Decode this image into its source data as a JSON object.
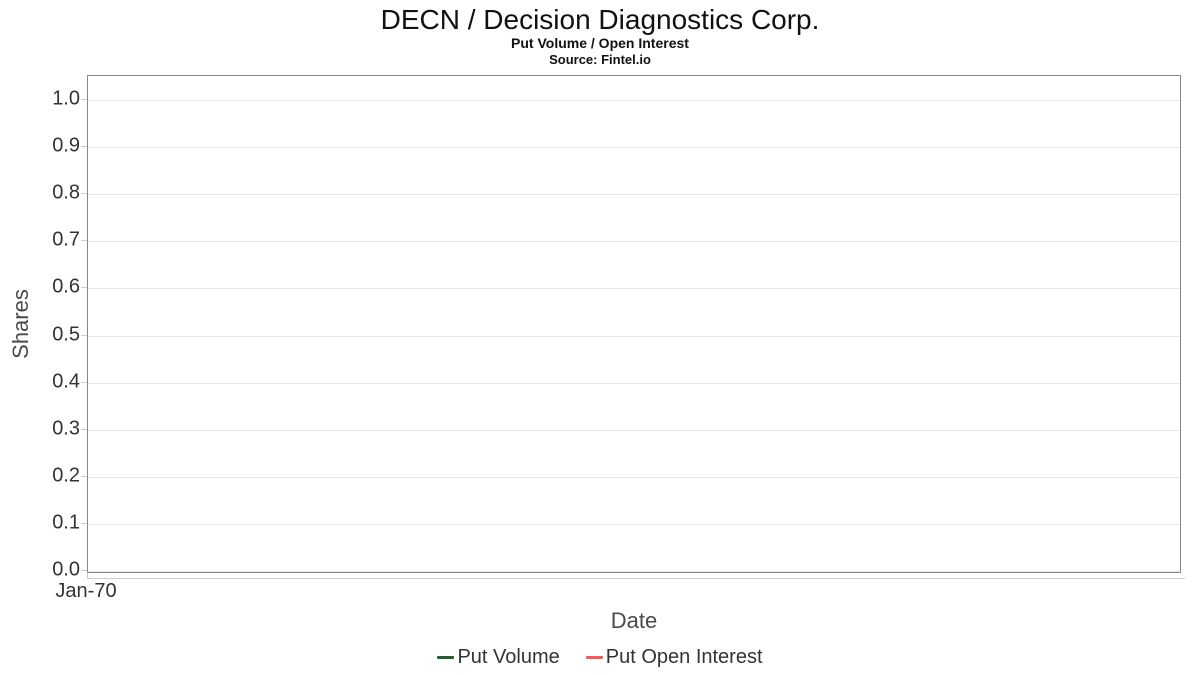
{
  "chart_data": {
    "type": "line",
    "title": "DECN / Decision Diagnostics Corp.",
    "subtitle": "Put Volume / Open Interest",
    "source": "Source: Fintel.io",
    "xlabel": "Date",
    "ylabel": "Shares",
    "x_ticks": [
      "Jan-70"
    ],
    "y_ticks": [
      "1.0",
      "0.9",
      "0.8",
      "0.7",
      "0.6",
      "0.5",
      "0.4",
      "0.3",
      "0.2",
      "0.1",
      "0.0"
    ],
    "ylim": [
      0.0,
      1.0
    ],
    "grid": true,
    "legend_position": "bottom",
    "series": [
      {
        "name": "Put Volume",
        "color": "#255c35",
        "x": [],
        "values": []
      },
      {
        "name": "Put Open Interest",
        "color": "#f45b5b",
        "x": [],
        "values": []
      }
    ],
    "colors": {
      "plot_border": "#888888",
      "gridline": "#e6e6e6",
      "tick": "#cccccc",
      "axis_label_text": "#333333",
      "axis_title_text": "#4a4a4a",
      "title_text": "#111111"
    }
  }
}
